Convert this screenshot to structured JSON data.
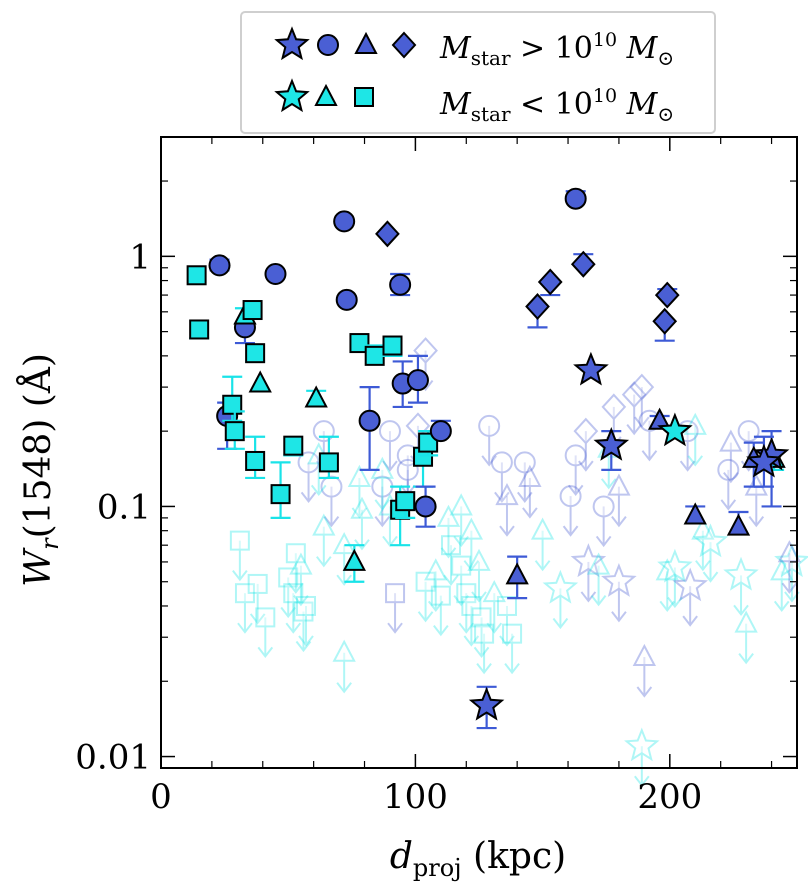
{
  "chart_data": {
    "type": "scatter",
    "title": "",
    "xlabel_main": "d",
    "xlabel_sub": "proj",
    "xlabel_rest": " (kpc)",
    "ylabel_main": "W",
    "ylabel_sub": "r",
    "ylabel_rest": "(1548) (Å)",
    "xlim": [
      0,
      250
    ],
    "ylim": [
      0.009,
      3.0
    ],
    "yscale": "log",
    "x_ticks": [
      {
        "v": 0,
        "label": "0"
      },
      {
        "v": 100,
        "label": "100"
      },
      {
        "v": 200,
        "label": "200"
      }
    ],
    "y_ticks": [
      {
        "v": 0.01,
        "label": "0.01"
      },
      {
        "v": 0.1,
        "label": "0.1"
      },
      {
        "v": 1,
        "label": "1"
      }
    ],
    "legend": {
      "position": "top-center",
      "rows": [
        {
          "symbols": [
            "star",
            "circle",
            "triangle",
            "diamond"
          ],
          "color": "#4a5fd4",
          "label_main": "M",
          "label_sub": "star",
          "label_rel": " > 10",
          "label_exp": "10",
          "label_unit": " M",
          "label_unit_sub": "⊙"
        },
        {
          "symbols": [
            "star",
            "triangle",
            "square"
          ],
          "color": "#1ee6e6",
          "label_main": "M",
          "label_sub": "star",
          "label_rel": " < 10",
          "label_exp": "10",
          "label_unit": " M",
          "label_unit_sub": "⊙"
        }
      ]
    },
    "colors": {
      "high": "#4a5fd4",
      "low": "#1ee6e6",
      "high_err": "#3d5ad6",
      "low_err": "#19e3e8"
    },
    "detections": [
      {
        "m": "s",
        "c": "c",
        "x": 14,
        "y": 0.84
      },
      {
        "m": "s",
        "c": "c",
        "x": 15,
        "y": 0.51,
        "lo": 0.47
      },
      {
        "m": "o",
        "c": "b",
        "x": 23,
        "y": 0.92,
        "lo": 0.88,
        "hi": 0.97
      },
      {
        "m": "o",
        "c": "b",
        "x": 26,
        "y": 0.23,
        "lo": 0.17,
        "hi": 0.26
      },
      {
        "m": "o",
        "c": "b",
        "x": 33,
        "y": 0.52,
        "lo": 0.45
      },
      {
        "m": "^",
        "c": "c",
        "x": 33,
        "y": 0.58,
        "hi": 0.62
      },
      {
        "m": "s",
        "c": "c",
        "x": 36,
        "y": 0.61
      },
      {
        "m": "s",
        "c": "c",
        "x": 37,
        "y": 0.41,
        "lo": 0.38
      },
      {
        "m": "^",
        "c": "c",
        "x": 39,
        "y": 0.31
      },
      {
        "m": "s",
        "c": "c",
        "x": 28,
        "y": 0.255,
        "lo": 0.22,
        "hi": 0.33
      },
      {
        "m": "s",
        "c": "c",
        "x": 29,
        "y": 0.2,
        "lo": 0.17,
        "hi": 0.24
      },
      {
        "m": "s",
        "c": "c",
        "x": 37,
        "y": 0.152,
        "lo": 0.13,
        "hi": 0.19
      },
      {
        "m": "o",
        "c": "b",
        "x": 45,
        "y": 0.85
      },
      {
        "m": "s",
        "c": "c",
        "x": 47,
        "y": 0.112,
        "lo": 0.09,
        "hi": 0.15
      },
      {
        "m": "s",
        "c": "c",
        "x": 52,
        "y": 0.175,
        "lo": 0.16
      },
      {
        "m": "^",
        "c": "c",
        "x": 61,
        "y": 0.27,
        "hi": 0.29
      },
      {
        "m": "s",
        "c": "c",
        "x": 66,
        "y": 0.15,
        "lo": 0.13,
        "hi": 0.19
      },
      {
        "m": "o",
        "c": "b",
        "x": 72,
        "y": 1.38
      },
      {
        "m": "o",
        "c": "b",
        "x": 73,
        "y": 0.67
      },
      {
        "m": "^",
        "c": "c",
        "x": 76,
        "y": 0.06,
        "lo": 0.05,
        "hi": 0.07
      },
      {
        "m": "s",
        "c": "c",
        "x": 78,
        "y": 0.45
      },
      {
        "m": "o",
        "c": "b",
        "x": 82,
        "y": 0.22,
        "lo": 0.14,
        "hi": 0.3
      },
      {
        "m": "s",
        "c": "c",
        "x": 84,
        "y": 0.4,
        "hi": 0.44
      },
      {
        "m": "D",
        "c": "b",
        "x": 89,
        "y": 1.23
      },
      {
        "m": "s",
        "c": "c",
        "x": 91,
        "y": 0.44,
        "lo": 0.4
      },
      {
        "m": "o",
        "c": "b",
        "x": 94,
        "y": 0.77,
        "lo": 0.7,
        "hi": 0.85
      },
      {
        "m": "o",
        "c": "b",
        "x": 95,
        "y": 0.31,
        "lo": 0.25,
        "hi": 0.38
      },
      {
        "m": "o",
        "c": "b",
        "x": 101,
        "y": 0.32,
        "lo": 0.26,
        "hi": 0.4
      },
      {
        "m": "s",
        "c": "c",
        "x": 94,
        "y": 0.097,
        "lo": 0.07,
        "hi": 0.12
      },
      {
        "m": "s",
        "c": "c",
        "x": 96,
        "y": 0.105,
        "lo": 0.09
      },
      {
        "m": "s",
        "c": "c",
        "x": 103,
        "y": 0.158,
        "lo": 0.12
      },
      {
        "m": "s",
        "c": "c",
        "x": 105,
        "y": 0.18,
        "lo": 0.16,
        "hi": 0.2
      },
      {
        "m": "o",
        "c": "b",
        "x": 104,
        "y": 0.1,
        "lo": 0.083,
        "hi": 0.12
      },
      {
        "m": "o",
        "c": "b",
        "x": 110,
        "y": 0.2,
        "hi": 0.22
      },
      {
        "m": "*",
        "c": "b",
        "x": 128,
        "y": 0.016,
        "lo": 0.013,
        "hi": 0.019
      },
      {
        "m": "^",
        "c": "b",
        "x": 140,
        "y": 0.053,
        "lo": 0.043,
        "hi": 0.063
      },
      {
        "m": "D",
        "c": "b",
        "x": 148,
        "y": 0.63,
        "lo": 0.52
      },
      {
        "m": "D",
        "c": "b",
        "x": 153,
        "y": 0.79,
        "lo": 0.7
      },
      {
        "m": "o",
        "c": "b",
        "x": 163,
        "y": 1.7,
        "hi": 1.82
      },
      {
        "m": "D",
        "c": "b",
        "x": 166,
        "y": 0.93,
        "hi": 1.02
      },
      {
        "m": "*",
        "c": "b",
        "x": 169,
        "y": 0.35
      },
      {
        "m": "*",
        "c": "b",
        "x": 177,
        "y": 0.175,
        "lo": 0.14,
        "hi": 0.2
      },
      {
        "m": "^",
        "c": "b",
        "x": 196,
        "y": 0.22,
        "hi": 0.23
      },
      {
        "m": "D",
        "c": "b",
        "x": 199,
        "y": 0.7,
        "hi": 0.74
      },
      {
        "m": "D",
        "c": "b",
        "x": 198,
        "y": 0.55,
        "lo": 0.46
      },
      {
        "m": "*",
        "c": "c",
        "x": 202,
        "y": 0.2
      },
      {
        "m": "^",
        "c": "b",
        "x": 210,
        "y": 0.092,
        "hi": 0.1
      },
      {
        "m": "^",
        "c": "b",
        "x": 227,
        "y": 0.083,
        "lo": 0.078,
        "hi": 0.095
      },
      {
        "m": "^",
        "c": "b",
        "x": 233,
        "y": 0.155,
        "lo": 0.12,
        "hi": 0.18
      },
      {
        "m": "^",
        "c": "c",
        "x": 241,
        "y": 0.155,
        "lo": 0.14
      },
      {
        "m": "*",
        "c": "b",
        "x": 240,
        "y": 0.16,
        "lo": 0.1,
        "hi": 0.2
      },
      {
        "m": "*",
        "c": "b",
        "x": 237,
        "y": 0.15,
        "lo": 0.12,
        "hi": 0.19
      }
    ],
    "upper_limits": [
      {
        "m": "s",
        "c": "c",
        "x": 31,
        "y": 0.073
      },
      {
        "m": "s",
        "c": "c",
        "x": 33,
        "y": 0.045
      },
      {
        "m": "s",
        "c": "c",
        "x": 38,
        "y": 0.049
      },
      {
        "m": "s",
        "c": "c",
        "x": 41,
        "y": 0.036
      },
      {
        "m": "s",
        "c": "c",
        "x": 50,
        "y": 0.052
      },
      {
        "m": "s",
        "c": "c",
        "x": 52,
        "y": 0.045
      },
      {
        "m": "s",
        "c": "c",
        "x": 53,
        "y": 0.065
      },
      {
        "m": "s",
        "c": "c",
        "x": 56,
        "y": 0.038
      },
      {
        "m": "s",
        "c": "c",
        "x": 57,
        "y": 0.04
      },
      {
        "m": "o",
        "c": "b",
        "x": 58,
        "y": 0.15
      },
      {
        "m": "o",
        "c": "b",
        "x": 64,
        "y": 0.2
      },
      {
        "m": "o",
        "c": "b",
        "x": 67,
        "y": 0.12
      },
      {
        "m": "^",
        "c": "c",
        "x": 62,
        "y": 0.16
      },
      {
        "m": "^",
        "c": "c",
        "x": 64,
        "y": 0.083
      },
      {
        "m": "^",
        "c": "c",
        "x": 72,
        "y": 0.07
      },
      {
        "m": "^",
        "c": "c",
        "x": 72,
        "y": 0.026
      },
      {
        "m": "^",
        "c": "c",
        "x": 78,
        "y": 0.13
      },
      {
        "m": "^",
        "c": "c",
        "x": 79,
        "y": 0.097
      },
      {
        "m": "o",
        "c": "b",
        "x": 87,
        "y": 0.12
      },
      {
        "m": "o",
        "c": "b",
        "x": 90,
        "y": 0.2
      },
      {
        "m": "o",
        "c": "b",
        "x": 97,
        "y": 0.16
      },
      {
        "m": "o",
        "c": "b",
        "x": 97,
        "y": 0.14
      },
      {
        "m": "D",
        "c": "b",
        "x": 104,
        "y": 0.42
      },
      {
        "m": "D",
        "c": "b",
        "x": 101,
        "y": 0.21
      },
      {
        "m": "s",
        "c": "b",
        "x": 92,
        "y": 0.045
      },
      {
        "m": "s",
        "c": "c",
        "x": 104,
        "y": 0.05
      },
      {
        "m": "s",
        "c": "c",
        "x": 110,
        "y": 0.044
      },
      {
        "m": "s",
        "c": "c",
        "x": 114,
        "y": 0.07
      },
      {
        "m": "s",
        "c": "c",
        "x": 118,
        "y": 0.058
      },
      {
        "m": "s",
        "c": "c",
        "x": 120,
        "y": 0.045
      },
      {
        "m": "s",
        "c": "c",
        "x": 122,
        "y": 0.04
      },
      {
        "m": "s",
        "c": "c",
        "x": 126,
        "y": 0.036
      },
      {
        "m": "s",
        "c": "c",
        "x": 127,
        "y": 0.031
      },
      {
        "m": "s",
        "c": "c",
        "x": 136,
        "y": 0.04
      },
      {
        "m": "s",
        "c": "c",
        "x": 138,
        "y": 0.031
      },
      {
        "m": "^",
        "c": "c",
        "x": 113,
        "y": 0.09
      },
      {
        "m": "^",
        "c": "c",
        "x": 118,
        "y": 0.1
      },
      {
        "m": "^",
        "c": "c",
        "x": 122,
        "y": 0.08
      },
      {
        "m": "^",
        "c": "c",
        "x": 125,
        "y": 0.06
      },
      {
        "m": "^",
        "c": "c",
        "x": 131,
        "y": 0.045
      },
      {
        "m": "o",
        "c": "b",
        "x": 129,
        "y": 0.21
      },
      {
        "m": "o",
        "c": "b",
        "x": 134,
        "y": 0.15
      },
      {
        "m": "o",
        "c": "b",
        "x": 143,
        "y": 0.15
      },
      {
        "m": "^",
        "c": "b",
        "x": 136,
        "y": 0.11
      },
      {
        "m": "^",
        "c": "b",
        "x": 145,
        "y": 0.13
      },
      {
        "m": "^",
        "c": "c",
        "x": 150,
        "y": 0.08
      },
      {
        "m": "*",
        "c": "c",
        "x": 157,
        "y": 0.047
      },
      {
        "m": "o",
        "c": "b",
        "x": 161,
        "y": 0.11
      },
      {
        "m": "o",
        "c": "b",
        "x": 163,
        "y": 0.16
      },
      {
        "m": "D",
        "c": "b",
        "x": 167,
        "y": 0.2
      },
      {
        "m": "*",
        "c": "b",
        "x": 168,
        "y": 0.06
      },
      {
        "m": "^",
        "c": "c",
        "x": 172,
        "y": 0.058
      },
      {
        "m": "o",
        "c": "b",
        "x": 174,
        "y": 0.1
      },
      {
        "m": "D",
        "c": "b",
        "x": 178,
        "y": 0.25
      },
      {
        "m": "^",
        "c": "c",
        "x": 176,
        "y": 0.17
      },
      {
        "m": "^",
        "c": "b",
        "x": 180,
        "y": 0.12
      },
      {
        "m": "*",
        "c": "b",
        "x": 180,
        "y": 0.05
      },
      {
        "m": "D",
        "c": "b",
        "x": 186,
        "y": 0.28
      },
      {
        "m": "D",
        "c": "b",
        "x": 189,
        "y": 0.3
      },
      {
        "m": "o",
        "c": "b",
        "x": 192,
        "y": 0.22
      },
      {
        "m": "^",
        "c": "b",
        "x": 190,
        "y": 0.025
      },
      {
        "m": "*",
        "c": "c",
        "x": 189,
        "y": 0.011
      },
      {
        "m": "^",
        "c": "c",
        "x": 199,
        "y": 0.055
      },
      {
        "m": "*",
        "c": "c",
        "x": 202,
        "y": 0.057
      },
      {
        "m": "o",
        "c": "b",
        "x": 207,
        "y": 0.2
      },
      {
        "m": "*",
        "c": "b",
        "x": 208,
        "y": 0.048
      },
      {
        "m": "^",
        "c": "c",
        "x": 210,
        "y": 0.21
      },
      {
        "m": "^",
        "c": "c",
        "x": 213,
        "y": 0.08
      },
      {
        "m": "*",
        "c": "c",
        "x": 216,
        "y": 0.072
      },
      {
        "m": "o",
        "c": "b",
        "x": 223,
        "y": 0.14
      },
      {
        "m": "^",
        "c": "b",
        "x": 224,
        "y": 0.18
      },
      {
        "m": "^",
        "c": "c",
        "x": 230,
        "y": 0.034
      },
      {
        "m": "*",
        "c": "c",
        "x": 228,
        "y": 0.053
      },
      {
        "m": "o",
        "c": "b",
        "x": 231,
        "y": 0.2
      },
      {
        "m": "^",
        "c": "b",
        "x": 234,
        "y": 0.12
      },
      {
        "m": "^",
        "c": "c",
        "x": 244,
        "y": 0.055
      },
      {
        "m": "*",
        "c": "c",
        "x": 248,
        "y": 0.06
      },
      {
        "m": "^",
        "c": "b",
        "x": 247,
        "y": 0.065
      },
      {
        "m": "^",
        "c": "c",
        "x": 87,
        "y": 0.14
      },
      {
        "m": "^",
        "c": "c",
        "x": 90,
        "y": 0.1
      },
      {
        "m": "^",
        "c": "c",
        "x": 108,
        "y": 0.055
      },
      {
        "m": "^",
        "c": "c",
        "x": 55,
        "y": 0.058
      }
    ]
  }
}
